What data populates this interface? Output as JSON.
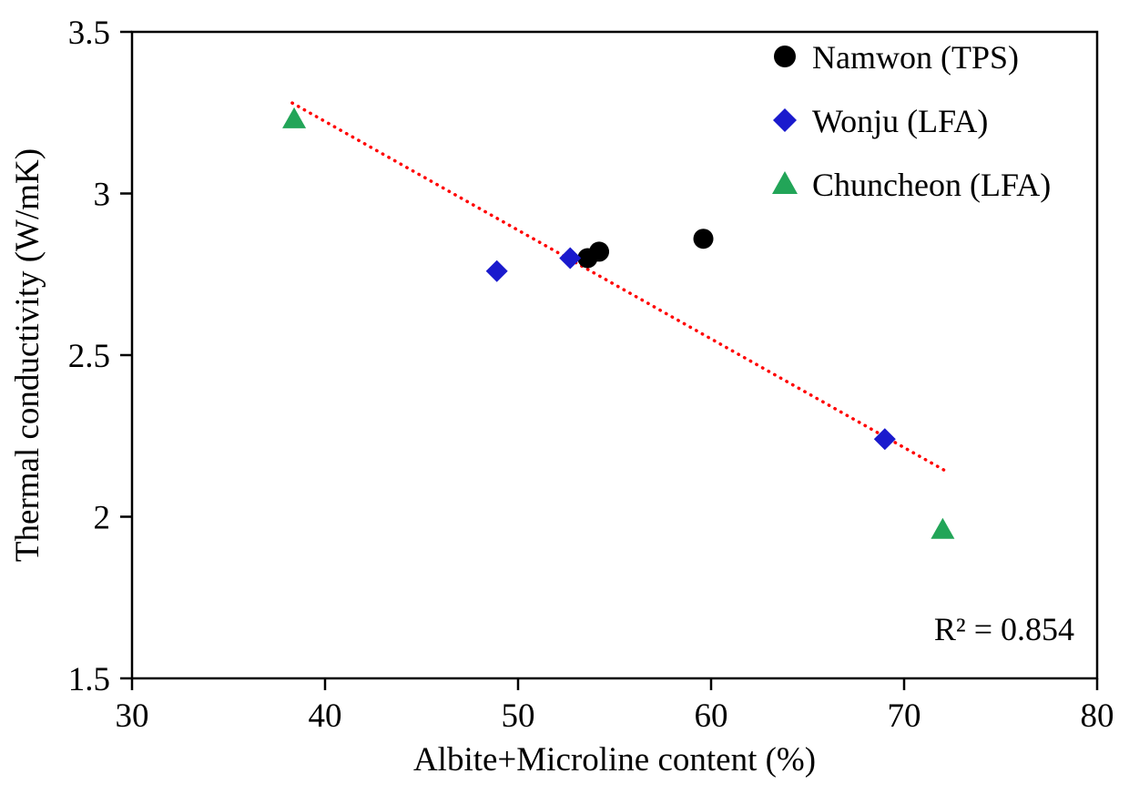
{
  "chart_data": {
    "type": "scatter",
    "title": "",
    "xlabel": "Albite+Microline content (%)",
    "ylabel": "Thermal conductivity (W/mK)",
    "xlim": [
      30,
      80
    ],
    "ylim": [
      1.5,
      3.5
    ],
    "xticks": [
      30,
      40,
      50,
      60,
      70,
      80
    ],
    "xtick_labels": [
      "30",
      "40",
      "50",
      "60",
      "70",
      "80"
    ],
    "yticks": [
      1.5,
      2,
      2.5,
      3,
      3.5
    ],
    "ytick_labels": [
      "1.5",
      "2",
      "2.5",
      "3",
      "3.5"
    ],
    "grid": false,
    "legend_position": "top-right-inside",
    "annotation": "R² = 0.854",
    "series": [
      {
        "name": "Namwon (TPS)",
        "marker": "circle",
        "color": "#000000",
        "points": [
          [
            53.6,
            2.8
          ],
          [
            54.2,
            2.82
          ],
          [
            59.6,
            2.86
          ]
        ]
      },
      {
        "name": "Wonju (LFA)",
        "marker": "diamond",
        "color": "#1a1acd",
        "points": [
          [
            48.9,
            2.76
          ],
          [
            52.7,
            2.8
          ],
          [
            69.0,
            2.24
          ]
        ]
      },
      {
        "name": "Chuncheon (LFA)",
        "marker": "triangle",
        "color": "#22a558",
        "points": [
          [
            38.4,
            3.23
          ],
          [
            72.0,
            1.96
          ]
        ]
      }
    ],
    "trendline": {
      "style": "dotted",
      "color": "#ff0000",
      "x1": 38.3,
      "y1": 3.28,
      "x2": 72.2,
      "y2": 2.14
    }
  }
}
